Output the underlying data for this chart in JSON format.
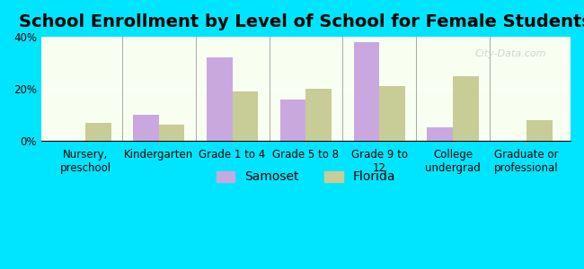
{
  "title": "School Enrollment by Level of School for Female Students",
  "categories": [
    "Nursery,\npreschool",
    "Kindergarten",
    "Grade 1 to 4",
    "Grade 5 to 8",
    "Grade 9 to\n12",
    "College\nundergrad",
    "Graduate or\nprofessional"
  ],
  "samoset": [
    0,
    10,
    32,
    16,
    38,
    5,
    0
  ],
  "florida": [
    7,
    6,
    19,
    20,
    21,
    25,
    8
  ],
  "samoset_color": "#c9a8e0",
  "florida_color": "#c8cc96",
  "background_outer": "#00e5ff",
  "background_plot_top": "#e8f0d8",
  "background_plot_bottom": "#f8fff0",
  "ylim": [
    0,
    40
  ],
  "yticks": [
    0,
    20,
    40
  ],
  "ytick_labels": [
    "0%",
    "20%",
    "40%"
  ],
  "legend_labels": [
    "Samoset",
    "Florida"
  ],
  "watermark": "City-Data.com",
  "bar_width": 0.35,
  "title_fontsize": 14,
  "tick_fontsize": 8.5,
  "legend_fontsize": 10
}
